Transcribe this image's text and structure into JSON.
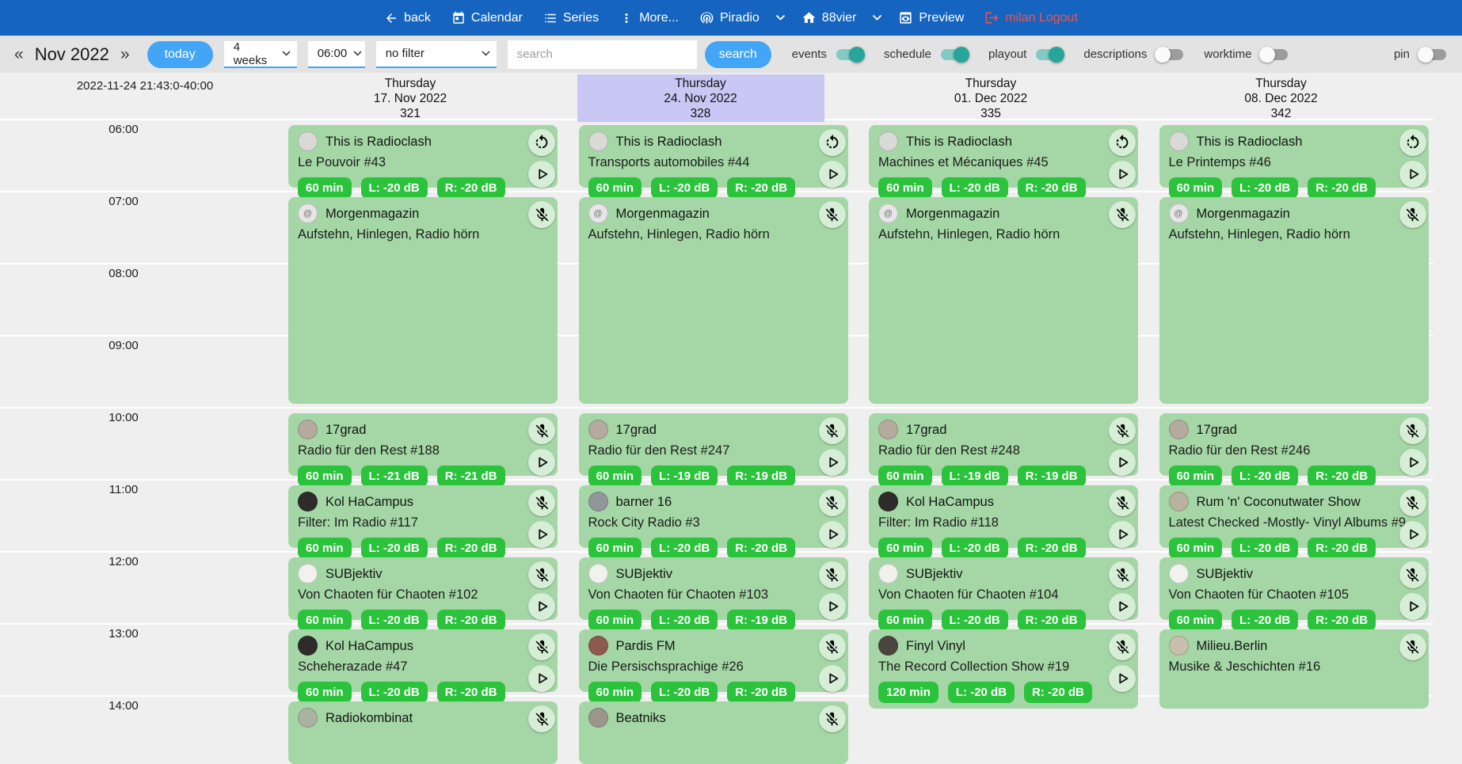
{
  "colors": {
    "navbar": "#1565c0",
    "accent": "#42a5f5",
    "toggle_on": "#26a69a",
    "logout": "#ef5350",
    "event_bg": "#a4d7a5",
    "badge_bg": "#2cc33c",
    "highlight_header": "#c9c7f4"
  },
  "navbar": {
    "items": [
      {
        "label": "back",
        "icon": "back-icon",
        "name": "back"
      },
      {
        "label": "Calendar",
        "icon": "calendar-icon",
        "name": "calendar"
      },
      {
        "label": "Series",
        "icon": "series-icon",
        "name": "series"
      },
      {
        "label": "More...",
        "icon": "more-icon",
        "name": "more"
      },
      {
        "label": "Piradio",
        "icon": "antenna-icon",
        "name": "piradio"
      },
      {
        "label": "",
        "icon": "chevron-down-icon",
        "name": "piradio-dropdown"
      },
      {
        "label": "88vier",
        "icon": "home-icon",
        "name": "88vier"
      },
      {
        "label": "",
        "icon": "chevron-down-icon",
        "name": "88vier-dropdown"
      },
      {
        "label": "Preview",
        "icon": "preview-icon",
        "name": "preview"
      },
      {
        "label": "milan Logout",
        "icon": "logout-icon",
        "name": "logout",
        "danger": true
      }
    ]
  },
  "toolbar": {
    "prev": "«",
    "next": "»",
    "month": "Nov 2022",
    "today": "today",
    "weeks_select": "4 weeks",
    "time_select": "06:00",
    "filter_select": "no filter",
    "search_placeholder": "search",
    "search_button": "search",
    "toggles": [
      {
        "label": "events",
        "on": true,
        "name": "events"
      },
      {
        "label": "schedule",
        "on": true,
        "name": "schedule"
      },
      {
        "label": "playout",
        "on": true,
        "name": "playout"
      },
      {
        "label": "descriptions",
        "on": false,
        "name": "descriptions"
      },
      {
        "label": "worktime",
        "on": false,
        "name": "worktime"
      },
      {
        "label": "pin",
        "on": false,
        "name": "pin",
        "push_right": true
      }
    ]
  },
  "grid": {
    "timestamp": "2022-11-24 21:43:0-40:00",
    "hours": [
      "06:00",
      "07:00",
      "08:00",
      "09:00",
      "10:00",
      "11:00",
      "12:00",
      "13:00",
      "14:00"
    ],
    "days": [
      {
        "weekday": "Thursday",
        "date": "17. Nov 2022",
        "day_number": "321",
        "highlighted": false,
        "events": [
          {
            "show": "This is Radioclash",
            "episode": "Le Pouvoir #43",
            "badges": [
              "60 min",
              "L: -20 dB",
              "R: -20 dB"
            ],
            "corner_icon": "repeat-icon",
            "play": true,
            "start": 6,
            "end": 7,
            "avatar_color": "#d9d9d5"
          },
          {
            "show": "Morgenmagazin",
            "episode": "Aufstehn, Hinlegen, Radio hörn",
            "badges": [],
            "corner_icon": "mic-off-icon",
            "play": false,
            "start": 7,
            "end": 10,
            "avatar_color": "#e6e6e6",
            "avatar_glyph": "@"
          },
          {
            "show": "17grad",
            "episode": "Radio für den Rest #188",
            "badges": [
              "60 min",
              "L: -21 dB",
              "R: -21 dB"
            ],
            "corner_icon": "mic-off-icon",
            "play": true,
            "start": 10,
            "end": 11,
            "avatar_color": "#b4aa9e"
          },
          {
            "show": "Kol HaCampus",
            "episode": "Filter: Im Radio #117",
            "badges": [
              "60 min",
              "L: -20 dB",
              "R: -20 dB"
            ],
            "corner_icon": "mic-off-icon",
            "play": true,
            "start": 11,
            "end": 12,
            "avatar_color": "#2e2c2a"
          },
          {
            "show": "SUBjektiv",
            "episode": "Von Chaoten für Chaoten #102",
            "badges": [
              "60 min",
              "L: -20 dB",
              "R: -20 dB"
            ],
            "corner_icon": "mic-off-icon",
            "play": true,
            "start": 12,
            "end": 13,
            "avatar_color": "#f1f1ee"
          },
          {
            "show": "Kol HaCampus",
            "episode": "Scheherazade #47",
            "badges": [
              "60 min",
              "L: -20 dB",
              "R: -20 dB"
            ],
            "corner_icon": "mic-off-icon",
            "play": true,
            "start": 13,
            "end": 14,
            "avatar_color": "#2e2c2a"
          },
          {
            "show": "Radiokombinat",
            "episode": "",
            "badges": [],
            "corner_icon": "mic-off-icon",
            "play": false,
            "start": 14,
            "end": 15,
            "avatar_color": "#a9b39f"
          }
        ]
      },
      {
        "weekday": "Thursday",
        "date": "24. Nov 2022",
        "day_number": "328",
        "highlighted": true,
        "events": [
          {
            "show": "This is Radioclash",
            "episode": "Transports automobiles #44",
            "badges": [
              "60 min",
              "L: -20 dB",
              "R: -20 dB"
            ],
            "corner_icon": "repeat-icon",
            "play": true,
            "start": 6,
            "end": 7,
            "avatar_color": "#d9d9d5"
          },
          {
            "show": "Morgenmagazin",
            "episode": "Aufstehn, Hinlegen, Radio hörn",
            "badges": [],
            "corner_icon": "mic-off-icon",
            "play": false,
            "start": 7,
            "end": 10,
            "avatar_color": "#e6e6e6",
            "avatar_glyph": "@"
          },
          {
            "show": "17grad",
            "episode": "Radio für den Rest #247",
            "badges": [
              "60 min",
              "L: -19 dB",
              "R: -19 dB"
            ],
            "corner_icon": "mic-off-icon",
            "play": true,
            "start": 10,
            "end": 11,
            "avatar_color": "#b4aa9e"
          },
          {
            "show": "barner 16",
            "episode": "Rock City Radio #3",
            "badges": [
              "60 min",
              "L: -20 dB",
              "R: -20 dB"
            ],
            "corner_icon": "mic-off-icon",
            "play": true,
            "start": 11,
            "end": 12,
            "avatar_color": "#8f969c"
          },
          {
            "show": "SUBjektiv",
            "episode": "Von Chaoten für Chaoten #103",
            "badges": [
              "60 min",
              "L: -20 dB",
              "R: -19 dB"
            ],
            "corner_icon": "mic-off-icon",
            "play": true,
            "start": 12,
            "end": 13,
            "avatar_color": "#f1f1ee"
          },
          {
            "show": "Pardis FM",
            "episode": "Die Persischsprachige #26",
            "badges": [
              "60 min",
              "L: -20 dB",
              "R: -20 dB"
            ],
            "corner_icon": "mic-off-icon",
            "play": true,
            "start": 13,
            "end": 14,
            "avatar_color": "#8d5a52"
          },
          {
            "show": "Beatniks",
            "episode": "",
            "badges": [],
            "corner_icon": "mic-off-icon",
            "play": false,
            "start": 14,
            "end": 15,
            "avatar_color": "#9b958c"
          }
        ]
      },
      {
        "weekday": "Thursday",
        "date": "01. Dec 2022",
        "day_number": "335",
        "highlighted": false,
        "events": [
          {
            "show": "This is Radioclash",
            "episode": "Machines et Mécaniques #45",
            "badges": [
              "60 min",
              "L: -20 dB",
              "R: -20 dB"
            ],
            "corner_icon": "repeat-icon",
            "play": true,
            "start": 6,
            "end": 7,
            "avatar_color": "#d9d9d5"
          },
          {
            "show": "Morgenmagazin",
            "episode": "Aufstehn, Hinlegen, Radio hörn",
            "badges": [],
            "corner_icon": "mic-off-icon",
            "play": false,
            "start": 7,
            "end": 10,
            "avatar_color": "#e6e6e6",
            "avatar_glyph": "@"
          },
          {
            "show": "17grad",
            "episode": "Radio für den Rest #248",
            "badges": [
              "60 min",
              "L: -19 dB",
              "R: -19 dB"
            ],
            "corner_icon": "mic-off-icon",
            "play": true,
            "start": 10,
            "end": 11,
            "avatar_color": "#b4aa9e"
          },
          {
            "show": "Kol HaCampus",
            "episode": "Filter: Im Radio #118",
            "badges": [
              "60 min",
              "L: -20 dB",
              "R: -20 dB"
            ],
            "corner_icon": "mic-off-icon",
            "play": true,
            "start": 11,
            "end": 12,
            "avatar_color": "#2e2c2a"
          },
          {
            "show": "SUBjektiv",
            "episode": "Von Chaoten für Chaoten #104",
            "badges": [
              "60 min",
              "L: -20 dB",
              "R: -20 dB"
            ],
            "corner_icon": "mic-off-icon",
            "play": true,
            "start": 12,
            "end": 13,
            "avatar_color": "#f1f1ee"
          },
          {
            "show": "Finyl Vinyl",
            "episode": "The Record Collection Show #19",
            "badges": [
              "120 min",
              "L: -20 dB",
              "R: -20 dB"
            ],
            "corner_icon": "mic-off-icon",
            "play": true,
            "start": 13,
            "end": 14.23,
            "avatar_color": "#4a463f"
          }
        ]
      },
      {
        "weekday": "Thursday",
        "date": "08. Dec 2022",
        "day_number": "342",
        "highlighted": false,
        "events": [
          {
            "show": "This is Radioclash",
            "episode": "Le Printemps #46",
            "badges": [
              "60 min",
              "L: -20 dB",
              "R: -20 dB"
            ],
            "corner_icon": "repeat-icon",
            "play": true,
            "start": 6,
            "end": 7,
            "avatar_color": "#d9d9d5"
          },
          {
            "show": "Morgenmagazin",
            "episode": "Aufstehn, Hinlegen, Radio hörn",
            "badges": [],
            "corner_icon": "mic-off-icon",
            "play": false,
            "start": 7,
            "end": 10,
            "avatar_color": "#e6e6e6",
            "avatar_glyph": "@"
          },
          {
            "show": "17grad",
            "episode": "Radio für den Rest #246",
            "badges": [
              "60 min",
              "L: -20 dB",
              "R: -20 dB"
            ],
            "corner_icon": "mic-off-icon",
            "play": true,
            "start": 10,
            "end": 11,
            "avatar_color": "#b4aa9e"
          },
          {
            "show": "Rum 'n' Coconutwater Show",
            "episode": "Latest Checked -Mostly- Vinyl Albums #9",
            "badges": [
              "60 min",
              "L: -20 dB",
              "R: -20 dB"
            ],
            "corner_icon": "mic-off-icon",
            "play": true,
            "start": 11,
            "end": 12,
            "avatar_color": "#b9b2a0"
          },
          {
            "show": "SUBjektiv",
            "episode": "Von Chaoten für Chaoten #105",
            "badges": [
              "60 min",
              "L: -20 dB",
              "R: -20 dB"
            ],
            "corner_icon": "mic-off-icon",
            "play": true,
            "start": 12,
            "end": 13,
            "avatar_color": "#f1f1ee"
          },
          {
            "show": "Milieu.Berlin",
            "episode": "Musike & Jeschichten #16",
            "badges": [],
            "corner_icon": "mic-off-icon",
            "play": false,
            "start": 13,
            "end": 14.23,
            "avatar_color": "#c8bfae"
          }
        ]
      }
    ]
  }
}
